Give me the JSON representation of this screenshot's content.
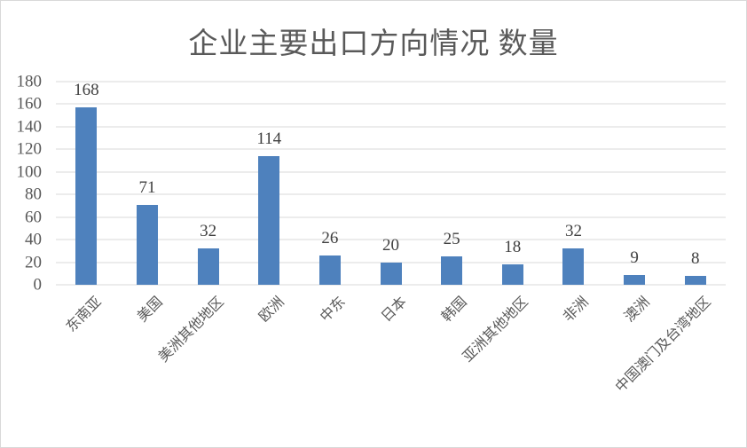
{
  "chart_data": {
    "type": "bar",
    "title": "企业主要出口方向情况 数量",
    "categories": [
      "东南亚",
      "美国",
      "美洲其他地区",
      "欧洲",
      "中东",
      "日本",
      "韩国",
      "亚洲其他地区",
      "非洲",
      "澳洲",
      "中国澳门及台湾地区"
    ],
    "values": [
      168,
      71,
      32,
      114,
      26,
      20,
      25,
      18,
      32,
      9,
      8
    ],
    "yticks": [
      0,
      20,
      40,
      60,
      80,
      100,
      120,
      140,
      160,
      180
    ],
    "ylim": [
      0,
      180
    ],
    "xlabel": "",
    "ylabel": "",
    "grid": "horizontal",
    "legend": "none",
    "data_labels": true,
    "x_label_rotation_deg": 45,
    "colors": {
      "bar": "#4E81BD",
      "gridline": "#D9D9D9",
      "axis_label": "#595959",
      "value_label": "#404040",
      "title": "#595959",
      "frame_border": "#D9D9D9"
    }
  }
}
